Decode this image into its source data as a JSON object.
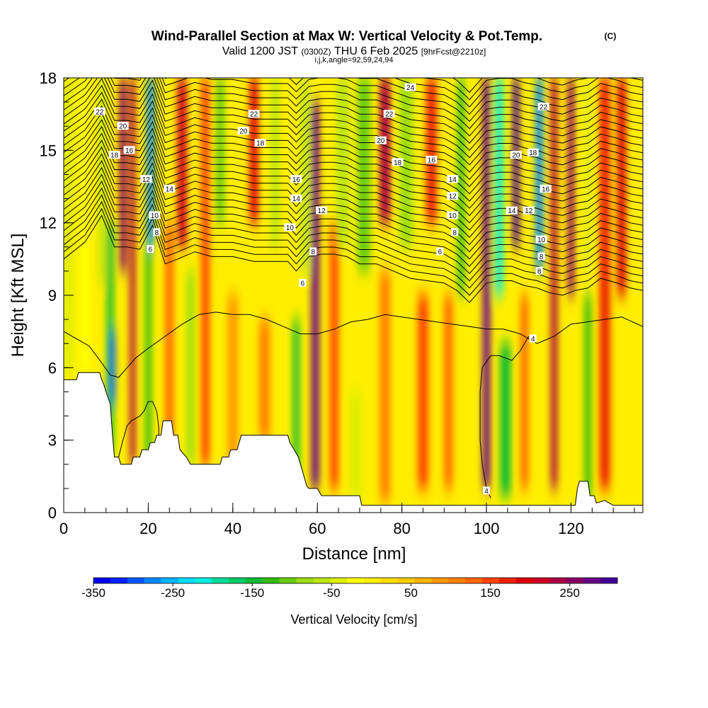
{
  "chart_data": {
    "type": "heatmap",
    "title": "Wind-Parallel Section at Max W: Vertical Velocity & Pot.Temp.",
    "title_mark": "(C)",
    "subtitle": {
      "valid": "Valid 1200 JST",
      "utc": "(0300Z)",
      "date": "THU 6 Feb 2025",
      "forecast": "[9hrFcst@2210z]",
      "indices": "i,j,k,angle=92,59,24,94"
    },
    "xlabel": "Distance [nm]",
    "ylabel": "Height [Kft MSL]",
    "xlim": [
      0,
      137
    ],
    "ylim": [
      0,
      18
    ],
    "x_ticks": [
      0,
      20,
      40,
      60,
      80,
      100,
      120
    ],
    "x_minor_step": 5,
    "y_ticks": [
      0,
      3,
      6,
      9,
      12,
      15,
      18
    ],
    "y_minor_step": 1,
    "colorbar": {
      "label": "Vertical Velocity [cm/s]",
      "min": -350,
      "max": 310,
      "step": 20,
      "ticks": [
        -350,
        -250,
        -150,
        -50,
        50,
        150,
        250
      ],
      "colors": [
        "#0000ee",
        "#0022f5",
        "#0055ff",
        "#0088ff",
        "#00b4ff",
        "#00ddff",
        "#00eedd",
        "#00dd99",
        "#00cc66",
        "#11bb33",
        "#33bb11",
        "#66cc11",
        "#99dd11",
        "#bbe611",
        "#ddee00",
        "#ffff00",
        "#ffee00",
        "#ffdd00",
        "#ffcc00",
        "#ffb300",
        "#ff9900",
        "#ff8000",
        "#ff6600",
        "#ff4400",
        "#ee2200",
        "#dd0000",
        "#cc0022",
        "#aa0044",
        "#880066",
        "#660088",
        "#440099"
      ]
    },
    "vertical_velocity_features": [
      {
        "x": 1,
        "w": 2,
        "z_bottom": 5.5,
        "z_top": 18,
        "value": -60
      },
      {
        "x": 5,
        "w": 2.5,
        "z_bottom": 5.8,
        "z_top": 18,
        "value": -40
      },
      {
        "x": 9,
        "w": 1.5,
        "z_bottom": 9.5,
        "z_top": 18,
        "value": -90
      },
      {
        "x": 11,
        "w": 1.6,
        "z_bottom": 2.5,
        "z_top": 12,
        "value": -170
      },
      {
        "x": 11.5,
        "w": 1.3,
        "z_bottom": 4.5,
        "z_top": 7.5,
        "value": -300
      },
      {
        "x": 14,
        "w": 1.6,
        "z_bottom": 10,
        "z_top": 18,
        "value": 220
      },
      {
        "x": 16.3,
        "w": 1.3,
        "z_bottom": 2,
        "z_top": 18,
        "value": 190
      },
      {
        "x": 20.5,
        "w": 1.6,
        "z_bottom": 11,
        "z_top": 18,
        "value": -280
      },
      {
        "x": 20,
        "w": 1.5,
        "z_bottom": 2,
        "z_top": 11,
        "value": -150
      },
      {
        "x": 25,
        "w": 2,
        "z_bottom": 2,
        "z_top": 12,
        "value": 90
      },
      {
        "x": 28,
        "w": 2.2,
        "z_bottom": 11,
        "z_top": 18,
        "value": 170
      },
      {
        "x": 30,
        "w": 1.8,
        "z_bottom": 2,
        "z_top": 10,
        "value": -110
      },
      {
        "x": 33.5,
        "w": 2,
        "z_bottom": 2,
        "z_top": 18,
        "value": 120
      },
      {
        "x": 37,
        "w": 2,
        "z_bottom": 12,
        "z_top": 18,
        "value": -130
      },
      {
        "x": 40,
        "w": 2.5,
        "z_bottom": 2,
        "z_top": 9,
        "value": 60
      },
      {
        "x": 45,
        "w": 2,
        "z_bottom": 12,
        "z_top": 18,
        "value": 150
      },
      {
        "x": 47.5,
        "w": 2.5,
        "z_bottom": 3,
        "z_top": 8,
        "value": 80
      },
      {
        "x": 50,
        "w": 2,
        "z_bottom": 11,
        "z_top": 18,
        "value": -80
      },
      {
        "x": 55,
        "w": 1.5,
        "z_bottom": 1,
        "z_top": 8,
        "value": -170
      },
      {
        "x": 57,
        "w": 1.8,
        "z_bottom": 10,
        "z_top": 18,
        "value": -90
      },
      {
        "x": 59.5,
        "w": 1.8,
        "z_bottom": 1,
        "z_top": 17,
        "value": 230
      },
      {
        "x": 64,
        "w": 2,
        "z_bottom": 1,
        "z_top": 12,
        "value": 110
      },
      {
        "x": 66,
        "w": 3,
        "z_bottom": 11,
        "z_top": 18,
        "value": -80
      },
      {
        "x": 69,
        "w": 3,
        "z_bottom": 0.5,
        "z_top": 5,
        "value": -70
      },
      {
        "x": 71,
        "w": 3,
        "z_bottom": 10,
        "z_top": 18,
        "value": -120
      },
      {
        "x": 76,
        "w": 2.5,
        "z_bottom": 12,
        "z_top": 18,
        "value": 190
      },
      {
        "x": 76,
        "w": 2.5,
        "z_bottom": 0.5,
        "z_top": 10,
        "value": 70
      },
      {
        "x": 81,
        "w": 3,
        "z_bottom": 11,
        "z_top": 18,
        "value": -100
      },
      {
        "x": 85,
        "w": 2.5,
        "z_bottom": 1,
        "z_top": 9,
        "value": 120
      },
      {
        "x": 87,
        "w": 2.5,
        "z_bottom": 12,
        "z_top": 18,
        "value": 130
      },
      {
        "x": 94,
        "w": 1.6,
        "z_bottom": 9,
        "z_top": 18,
        "value": -150
      },
      {
        "x": 91,
        "w": 2,
        "z_bottom": 1,
        "z_top": 9,
        "value": 90
      },
      {
        "x": 100,
        "w": 1.7,
        "z_bottom": 1,
        "z_top": 18,
        "value": 240
      },
      {
        "x": 103,
        "w": 1.8,
        "z_bottom": 9,
        "z_top": 18,
        "value": -230
      },
      {
        "x": 104.5,
        "w": 2.5,
        "z_bottom": 0.7,
        "z_top": 7,
        "value": -170
      },
      {
        "x": 107,
        "w": 1.5,
        "z_bottom": 11,
        "z_top": 18,
        "value": 260
      },
      {
        "x": 109,
        "w": 1.8,
        "z_bottom": 1,
        "z_top": 9,
        "value": 90
      },
      {
        "x": 112.5,
        "w": 1.7,
        "z_bottom": 10,
        "z_top": 18,
        "value": -280
      },
      {
        "x": 116,
        "w": 1.5,
        "z_bottom": 1,
        "z_top": 18,
        "value": 200
      },
      {
        "x": 120,
        "w": 1.5,
        "z_bottom": 9,
        "z_top": 18,
        "value": 220
      },
      {
        "x": 124,
        "w": 1.6,
        "z_bottom": 0.5,
        "z_top": 9,
        "value": -150
      },
      {
        "x": 124,
        "w": 1.5,
        "z_bottom": 10,
        "z_top": 18,
        "value": -60
      },
      {
        "x": 128,
        "w": 2.5,
        "z_bottom": 1,
        "z_top": 18,
        "value": 130
      },
      {
        "x": 132,
        "w": 2,
        "z_bottom": 9,
        "z_top": 18,
        "value": 160
      }
    ],
    "terrain": [
      [
        0,
        5.5
      ],
      [
        3,
        5.5
      ],
      [
        3.5,
        5.8
      ],
      [
        8.5,
        5.8
      ],
      [
        9,
        5.5
      ],
      [
        9.5,
        5.3
      ],
      [
        10,
        5
      ],
      [
        11,
        4.5
      ],
      [
        11.5,
        3.3
      ],
      [
        12,
        2.3
      ],
      [
        13,
        2.3
      ],
      [
        13.5,
        2
      ],
      [
        16,
        2
      ],
      [
        16.5,
        2.3
      ],
      [
        18,
        2.3
      ],
      [
        18.5,
        2.6
      ],
      [
        20,
        2.6
      ],
      [
        20.5,
        2.9
      ],
      [
        21.5,
        2.9
      ],
      [
        22,
        3.2
      ],
      [
        23,
        3.2
      ],
      [
        23.5,
        3.8
      ],
      [
        25.5,
        3.8
      ],
      [
        26,
        3.2
      ],
      [
        27,
        3.2
      ],
      [
        27.5,
        2.6
      ],
      [
        29,
        2.3
      ],
      [
        30,
        2
      ],
      [
        37,
        2
      ],
      [
        37.5,
        2.3
      ],
      [
        39,
        2.3
      ],
      [
        39.5,
        2.6
      ],
      [
        41,
        2.6
      ],
      [
        41.5,
        2.9
      ],
      [
        42,
        3.2
      ],
      [
        53,
        3.2
      ],
      [
        53.5,
        2.9
      ],
      [
        54.5,
        2.6
      ],
      [
        55.5,
        2.3
      ],
      [
        56,
        2
      ],
      [
        56.5,
        1.7
      ],
      [
        57,
        1.4
      ],
      [
        57.5,
        1.1
      ],
      [
        58,
        1
      ],
      [
        60,
        1
      ],
      [
        61,
        0.7
      ],
      [
        70,
        0.7
      ],
      [
        70.5,
        0.3
      ],
      [
        121,
        0.3
      ],
      [
        121.5,
        1
      ],
      [
        122,
        1.3
      ],
      [
        124,
        1.3
      ],
      [
        124.5,
        0.7
      ],
      [
        125.5,
        0.7
      ],
      [
        126,
        0.4
      ],
      [
        128,
        0.5
      ],
      [
        130,
        0.3
      ],
      [
        137,
        0.3
      ]
    ],
    "theta_upper_base": [
      [
        0,
        10.5
      ],
      [
        5,
        11.2
      ],
      [
        9,
        12.3
      ],
      [
        12,
        11
      ],
      [
        15,
        11
      ],
      [
        18,
        10.9
      ],
      [
        21,
        11.9
      ],
      [
        24,
        10.3
      ],
      [
        27,
        10.5
      ],
      [
        31,
        10.8
      ],
      [
        35,
        10.6
      ],
      [
        40,
        10.6
      ],
      [
        45,
        10.4
      ],
      [
        50,
        10.4
      ],
      [
        53,
        10.4
      ],
      [
        55,
        10
      ],
      [
        58,
        10.6
      ],
      [
        61,
        10.7
      ],
      [
        64,
        10.7
      ],
      [
        67,
        10.6
      ],
      [
        70,
        10.3
      ],
      [
        74,
        10.3
      ],
      [
        78,
        10
      ],
      [
        82,
        9.7
      ],
      [
        86,
        9.6
      ],
      [
        90,
        9.5
      ],
      [
        93,
        9.2
      ],
      [
        96,
        8.7
      ],
      [
        100,
        9.5
      ],
      [
        103,
        9.6
      ],
      [
        106,
        9.6
      ],
      [
        109,
        9.4
      ],
      [
        112,
        9.3
      ],
      [
        115,
        9.1
      ],
      [
        118,
        9
      ],
      [
        121,
        9.2
      ],
      [
        124,
        9.3
      ],
      [
        127,
        9.7
      ],
      [
        131,
        9.5
      ],
      [
        134,
        9.3
      ],
      [
        137,
        9.2
      ]
    ],
    "theta_upper_count": 30,
    "theta_upper_spacing": 0.3,
    "theta_mid_line": [
      [
        0,
        7.5
      ],
      [
        3,
        7.2
      ],
      [
        6,
        6.9
      ],
      [
        9,
        6.2
      ],
      [
        11,
        5.7
      ],
      [
        13,
        5.6
      ],
      [
        15,
        6
      ],
      [
        17,
        6.4
      ],
      [
        20,
        6.8
      ],
      [
        24,
        7.3
      ],
      [
        28,
        7.8
      ],
      [
        32,
        8.2
      ],
      [
        36,
        8.3
      ],
      [
        40,
        8.2
      ],
      [
        44,
        8.2
      ],
      [
        48,
        8
      ],
      [
        52,
        7.7
      ],
      [
        56,
        7.4
      ],
      [
        60,
        7.4
      ],
      [
        64,
        7.6
      ],
      [
        68,
        7.9
      ],
      [
        72,
        8
      ],
      [
        76,
        8.2
      ],
      [
        80,
        8.1
      ],
      [
        84,
        8
      ],
      [
        88,
        7.9
      ],
      [
        92,
        7.8
      ],
      [
        96,
        7.7
      ],
      [
        100,
        7.6
      ],
      [
        104,
        7.6
      ],
      [
        108,
        7.4
      ],
      [
        112,
        7
      ],
      [
        116,
        7.3
      ],
      [
        120,
        7.8
      ],
      [
        124,
        7.9
      ],
      [
        128,
        8
      ],
      [
        132,
        8.1
      ],
      [
        137,
        7.7
      ]
    ],
    "theta_hill_line": [
      [
        13,
        2.3
      ],
      [
        14,
        3
      ],
      [
        15,
        3.6
      ],
      [
        16,
        3.8
      ],
      [
        18,
        4
      ],
      [
        19,
        4.2
      ],
      [
        20,
        4.6
      ],
      [
        21,
        4.6
      ],
      [
        22,
        4.2
      ],
      [
        22.5,
        3.5
      ],
      [
        22.5,
        3.2
      ]
    ],
    "theta_low4_line": [
      [
        101,
        0.6
      ],
      [
        100,
        1
      ],
      [
        99,
        2
      ],
      [
        98.5,
        3
      ],
      [
        98.5,
        4
      ],
      [
        98.5,
        5
      ],
      [
        99,
        6
      ],
      [
        101,
        6.5
      ],
      [
        103,
        6.5
      ],
      [
        106,
        6.3
      ],
      [
        108,
        6.7
      ],
      [
        110,
        7.3
      ]
    ],
    "contour_labels": [
      {
        "text": "22",
        "x": 8.5,
        "y": 16.6
      },
      {
        "text": "20",
        "x": 14,
        "y": 16
      },
      {
        "text": "18",
        "x": 12,
        "y": 14.8
      },
      {
        "text": "16",
        "x": 15.5,
        "y": 15
      },
      {
        "text": "12",
        "x": 19.5,
        "y": 13.8
      },
      {
        "text": "14",
        "x": 25,
        "y": 13.4
      },
      {
        "text": "10",
        "x": 21.5,
        "y": 12.3
      },
      {
        "text": "8",
        "x": 22,
        "y": 11.6
      },
      {
        "text": "6",
        "x": 20.5,
        "y": 10.9
      },
      {
        "text": "22",
        "x": 45,
        "y": 16.5
      },
      {
        "text": "20",
        "x": 42.5,
        "y": 15.8
      },
      {
        "text": "18",
        "x": 46.5,
        "y": 15.3
      },
      {
        "text": "16",
        "x": 55,
        "y": 13.8
      },
      {
        "text": "14",
        "x": 55,
        "y": 13
      },
      {
        "text": "12",
        "x": 61,
        "y": 12.5
      },
      {
        "text": "10",
        "x": 53.5,
        "y": 11.8
      },
      {
        "text": "8",
        "x": 59,
        "y": 10.8
      },
      {
        "text": "6",
        "x": 56.5,
        "y": 9.5
      },
      {
        "text": "24",
        "x": 82,
        "y": 17.6
      },
      {
        "text": "22",
        "x": 77,
        "y": 16.5
      },
      {
        "text": "20",
        "x": 75,
        "y": 15.4
      },
      {
        "text": "18",
        "x": 79,
        "y": 14.5
      },
      {
        "text": "16",
        "x": 87,
        "y": 14.6
      },
      {
        "text": "14",
        "x": 92,
        "y": 13.8
      },
      {
        "text": "12",
        "x": 92,
        "y": 13.1
      },
      {
        "text": "10",
        "x": 92,
        "y": 12.3
      },
      {
        "text": "8",
        "x": 92.5,
        "y": 11.6
      },
      {
        "text": "6",
        "x": 89,
        "y": 10.8
      },
      {
        "text": "22",
        "x": 113.5,
        "y": 16.8
      },
      {
        "text": "20",
        "x": 107,
        "y": 14.8
      },
      {
        "text": "18",
        "x": 111,
        "y": 14.9
      },
      {
        "text": "16",
        "x": 114,
        "y": 13.4
      },
      {
        "text": "14",
        "x": 106,
        "y": 12.5
      },
      {
        "text": "12",
        "x": 110,
        "y": 12.5
      },
      {
        "text": "10",
        "x": 113,
        "y": 11.3
      },
      {
        "text": "8",
        "x": 113,
        "y": 10.6
      },
      {
        "text": "8",
        "x": 112.5,
        "y": 10
      },
      {
        "text": "4",
        "x": 111,
        "y": 7.2
      },
      {
        "text": "4",
        "x": 100,
        "y": 0.9
      }
    ]
  }
}
